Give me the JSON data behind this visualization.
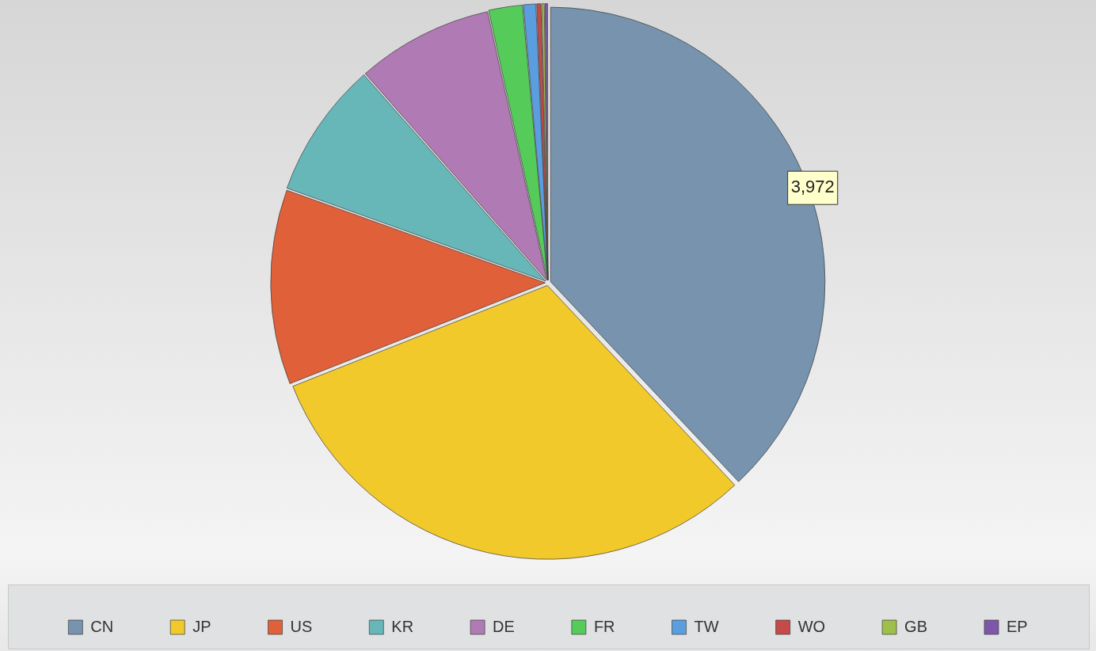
{
  "chart_data": {
    "type": "pie",
    "categories": [
      "CN",
      "JP",
      "US",
      "KR",
      "DE",
      "FR",
      "TW",
      "WO",
      "GB",
      "EP"
    ],
    "values": [
      3972,
      3240,
      1200,
      840,
      840,
      210,
      80,
      30,
      20,
      20
    ],
    "colors": [
      "#7793ad",
      "#f2c92a",
      "#e0603a",
      "#67b7b9",
      "#b07ab4",
      "#55cc5a",
      "#5b9ee0",
      "#c64a4a",
      "#9ebf4a",
      "#7e57a8"
    ],
    "value_labels": [
      "3,972",
      null,
      null,
      null,
      null,
      null,
      null,
      null,
      null,
      null
    ],
    "legend": "bottom"
  }
}
